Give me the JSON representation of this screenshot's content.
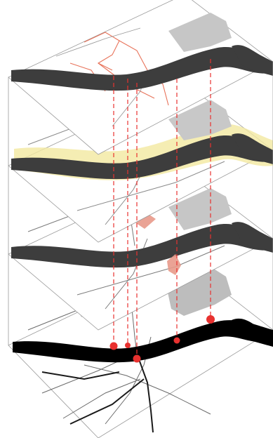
{
  "figure": {
    "layers": [
      {
        "id": "layer-1",
        "theme": "historic-routes",
        "accent_color": "#e8735a"
      },
      {
        "id": "layer-2",
        "theme": "floodplain",
        "accent_color": "#f2e9a0"
      },
      {
        "id": "layer-3",
        "theme": "landmarks",
        "accent_color": "#e89a8a"
      },
      {
        "id": "layer-4",
        "theme": "base-network",
        "accent_color": "#000000"
      }
    ],
    "connectors": {
      "color": "#e8312f",
      "count": 5
    },
    "colors": {
      "river": "#3d3d3d",
      "base_river": "#000000",
      "industrial": "#bdbdbd",
      "road": "#777777",
      "plane_edge": "#9a9a9a"
    }
  }
}
